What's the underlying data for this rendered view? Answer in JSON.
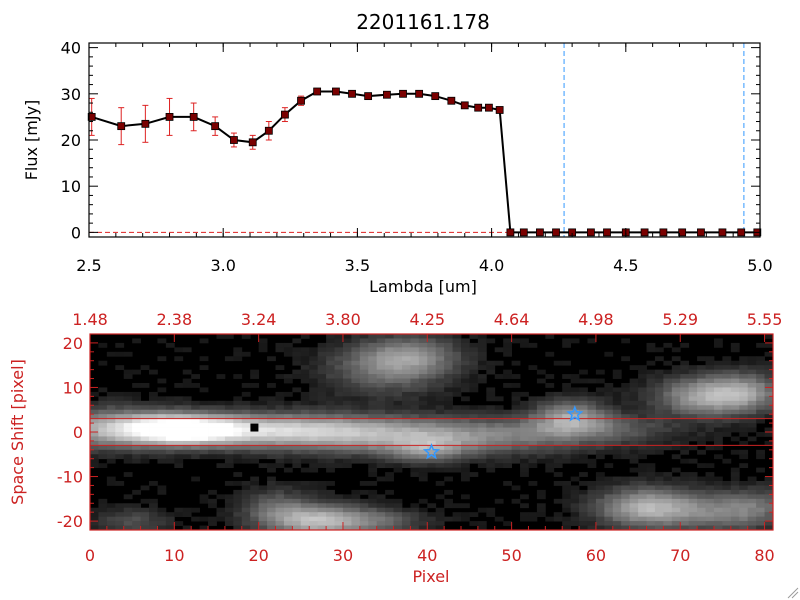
{
  "chart_data": [
    {
      "type": "line",
      "title": "2201161.178",
      "xlabel": "Lambda [um]",
      "ylabel": "Flux [mJy]",
      "xlim": [
        2.5,
        5.0
      ],
      "ylim": [
        -1,
        41
      ],
      "x_ticks": [
        "2.5",
        "3.0",
        "3.5",
        "4.0",
        "4.5",
        "5.0"
      ],
      "x_tick_values": [
        2.5,
        3.0,
        3.5,
        4.0,
        4.5,
        5.0
      ],
      "y_ticks": [
        "0",
        "10",
        "20",
        "30",
        "40"
      ],
      "y_tick_values": [
        0,
        10,
        20,
        30,
        40
      ],
      "series": [
        {
          "x": [
            2.51,
            2.62,
            2.71,
            2.8,
            2.89,
            2.97,
            3.04,
            3.11,
            3.17,
            3.23,
            3.29,
            3.35,
            3.42,
            3.48,
            3.54,
            3.61,
            3.67,
            3.73,
            3.79,
            3.85,
            3.9,
            3.95,
            3.99,
            4.03,
            4.07,
            4.12,
            4.18,
            4.24,
            4.3,
            4.37,
            4.43,
            4.5,
            4.57,
            4.64,
            4.71,
            4.78,
            4.86,
            4.93,
            4.99
          ],
          "y": [
            25.0,
            23.0,
            23.5,
            25.0,
            25.0,
            23.0,
            20.0,
            19.5,
            22.0,
            25.5,
            28.5,
            30.5,
            30.5,
            30.0,
            29.5,
            29.8,
            30.0,
            30.0,
            29.5,
            28.5,
            27.5,
            27.0,
            27.0,
            26.5,
            0,
            0,
            0,
            0,
            0,
            0,
            0,
            0,
            0,
            0,
            0,
            0,
            0,
            0,
            0
          ],
          "yerr": [
            4,
            4,
            4,
            4,
            3,
            2,
            1.5,
            1.5,
            2,
            1.5,
            1,
            0.5,
            0.5,
            0.5,
            0.5,
            0.5,
            0.5,
            0.5,
            0.5,
            0.5,
            0.5,
            0.5,
            0.5,
            0.5,
            0,
            0,
            0,
            0,
            0,
            0,
            0,
            0,
            0,
            0,
            0,
            0,
            0,
            0,
            0
          ],
          "line_color": "#000000",
          "marker_color": "#7a0000",
          "error_color": "#dd2222"
        }
      ],
      "vlines": [
        {
          "x": 4.27,
          "color": "#3399ff",
          "style": "dashed"
        },
        {
          "x": 4.94,
          "color": "#3399ff",
          "style": "dashed"
        }
      ],
      "hlines": [
        {
          "y": 0,
          "color": "#dd2222",
          "style": "dashed"
        }
      ],
      "grid": false
    },
    {
      "type": "heatmap",
      "colormap": "grayscale",
      "xlabel": "Pixel",
      "ylabel": "Space Shift [pixel]",
      "axis_color": "#cc2222",
      "xlim": [
        0,
        81
      ],
      "ylim": [
        -22,
        22
      ],
      "x_ticks": [
        "0",
        "10",
        "20",
        "30",
        "40",
        "50",
        "60",
        "70",
        "80"
      ],
      "x_tick_values": [
        0,
        10,
        20,
        30,
        40,
        50,
        60,
        70,
        80
      ],
      "y_ticks": [
        "-20",
        "-10",
        "0",
        "10",
        "20"
      ],
      "y_tick_values": [
        -20,
        -10,
        0,
        10,
        20
      ],
      "top_ticks": [
        "1.48",
        "2.38",
        "3.24",
        "3.80",
        "4.25",
        "4.64",
        "4.98",
        "5.29",
        "5.55"
      ],
      "top_tick_values": [
        0,
        10,
        20,
        30,
        40,
        50,
        60,
        70,
        80
      ],
      "hlines": [
        {
          "y": 3,
          "color": "#cc2222"
        },
        {
          "y": -3,
          "color": "#cc2222"
        }
      ],
      "markers": [
        {
          "x": 19.5,
          "y": 1,
          "shape": "square",
          "color": "#000000"
        },
        {
          "x": 40.5,
          "y": -4.5,
          "shape": "star",
          "color": "#3399ff"
        },
        {
          "x": 57.5,
          "y": 4,
          "shape": "star",
          "color": "#3399ff"
        }
      ],
      "blobs": [
        {
          "x": 0,
          "y": 0.5,
          "sx": 3,
          "sy": 3,
          "amp": 0.3
        },
        {
          "x": 5,
          "y": 1,
          "sx": 4,
          "sy": 3,
          "amp": 0.4
        },
        {
          "x": 11,
          "y": 0.5,
          "sx": 4.5,
          "sy": 2.2,
          "amp": 1.0
        },
        {
          "x": 22,
          "y": 0.5,
          "sx": 9,
          "sy": 2.5,
          "amp": 0.6
        },
        {
          "x": 40,
          "y": -1,
          "sx": 13,
          "sy": 2.8,
          "amp": 0.5
        },
        {
          "x": 40,
          "y": -4,
          "sx": 3,
          "sy": 2,
          "amp": 0.3
        },
        {
          "x": 57,
          "y": 3.5,
          "sx": 3,
          "sy": 2.5,
          "amp": 0.45
        },
        {
          "x": 60,
          "y": 1,
          "sx": 6,
          "sy": 2,
          "amp": 0.2
        },
        {
          "x": 73,
          "y": 8,
          "sx": 4,
          "sy": 3,
          "amp": 0.55
        },
        {
          "x": 78,
          "y": 9,
          "sx": 3,
          "sy": 3,
          "amp": 0.35
        },
        {
          "x": 35,
          "y": 14,
          "sx": 5,
          "sy": 4,
          "amp": 0.3
        },
        {
          "x": 38,
          "y": 17,
          "sx": 4,
          "sy": 3,
          "amp": 0.35
        },
        {
          "x": 27,
          "y": -20,
          "sx": 4,
          "sy": 2.5,
          "amp": 0.6
        },
        {
          "x": 22,
          "y": -17,
          "sx": 3,
          "sy": 3,
          "amp": 0.25
        },
        {
          "x": 34,
          "y": -20,
          "sx": 4,
          "sy": 2,
          "amp": 0.25
        },
        {
          "x": 66,
          "y": -17,
          "sx": 4,
          "sy": 3,
          "amp": 0.6
        },
        {
          "x": 74,
          "y": -18,
          "sx": 4,
          "sy": 3,
          "amp": 0.3
        },
        {
          "x": 79,
          "y": -17,
          "sx": 3,
          "sy": 3,
          "amp": 0.25
        },
        {
          "x": 5,
          "y": -20,
          "sx": 3,
          "sy": 2,
          "amp": 0.2
        }
      ]
    }
  ]
}
